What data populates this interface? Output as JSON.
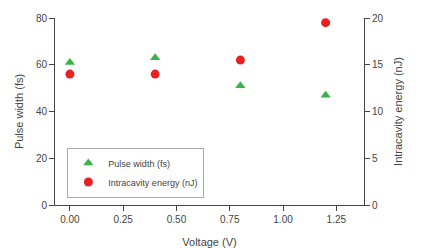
{
  "chart_data": {
    "type": "scatter",
    "x": [
      0,
      0.4,
      0.8,
      1.2
    ],
    "xlabel": "Voltage (V)",
    "ylabel": "Pulse width (fs)",
    "y2label": "Intracavity energy (nJ)",
    "series": [
      {
        "name": "Pulse width (fs)",
        "color": "#3cb24a",
        "marker": "triangle",
        "axis": "y",
        "values": [
          61,
          63,
          51,
          47
        ]
      },
      {
        "name": "Intracavity energy (nJ)",
        "color": "#e82020",
        "marker": "circle",
        "axis": "y2",
        "values": [
          14.0,
          14.0,
          15.5,
          19.5
        ]
      }
    ],
    "xlim": [
      -0.07,
      1.38
    ],
    "xticks": [
      {
        "value": 0,
        "label": "0.00"
      },
      0.25,
      {
        "value": 0.5,
        "label": "0.50"
      },
      0.75,
      {
        "value": 1.0,
        "label": "1.00"
      },
      1.25
    ],
    "ylim": [
      0,
      80
    ],
    "yticks": [
      0,
      20,
      40,
      60,
      80
    ],
    "y2lim": [
      0,
      20
    ],
    "y2ticks": [
      0,
      5,
      10,
      15,
      20
    ],
    "grid": false,
    "legend": "lower left"
  }
}
